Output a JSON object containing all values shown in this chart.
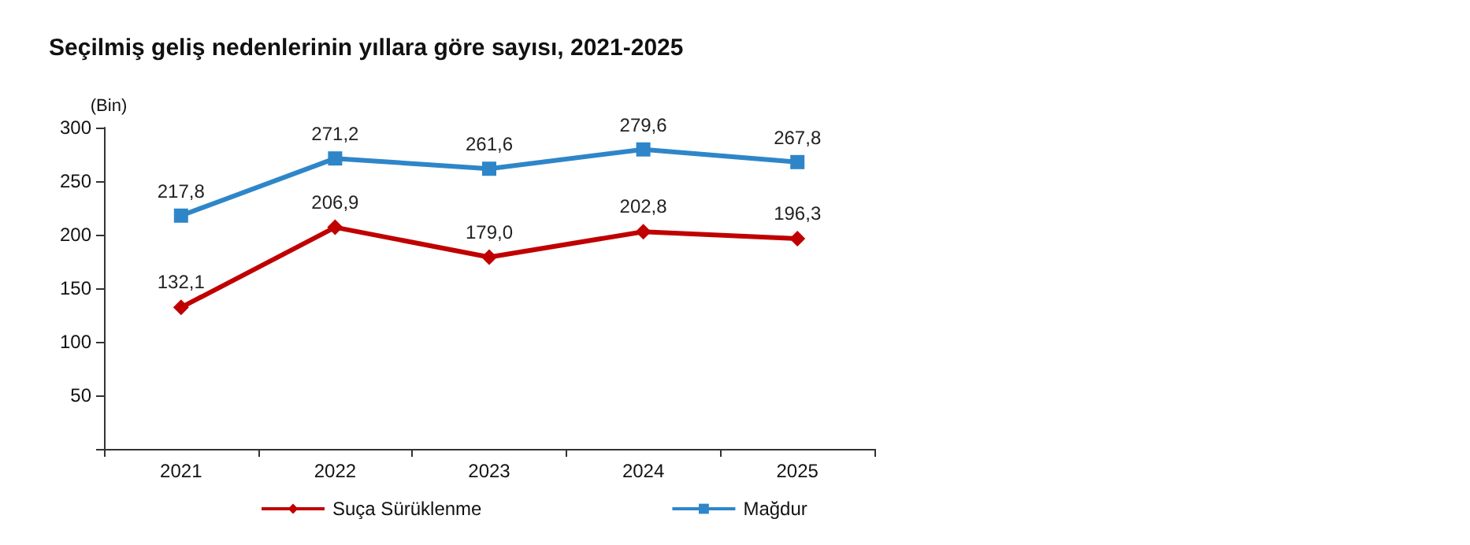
{
  "chart_data": {
    "type": "line",
    "title": "Seçilmiş geliş nedenlerinin yıllara göre sayısı, 2021-2025",
    "ylabel": "(Bin)",
    "categories": [
      "2021",
      "2022",
      "2023",
      "2024",
      "2025"
    ],
    "series": [
      {
        "name": "Suça Sürüklenme",
        "color": "#c00000",
        "marker": "diamond",
        "values": [
          132.1,
          206.9,
          179.0,
          202.8,
          196.3
        ],
        "value_labels": [
          "132,1",
          "206,9",
          "179,0",
          "202,8",
          "196,3"
        ]
      },
      {
        "name": "Mağdur",
        "color": "#2e86c9",
        "marker": "square",
        "values": [
          217.8,
          271.2,
          261.6,
          279.6,
          267.8
        ],
        "value_labels": [
          "217,8",
          "271,2",
          "261,6",
          "279,6",
          "267,8"
        ]
      }
    ],
    "ylim": [
      0,
      300
    ],
    "yticks": [
      {
        "value": 0,
        "label": null
      },
      50,
      100,
      150,
      200,
      250,
      300
    ],
    "grid": false,
    "legend": "bottom"
  }
}
